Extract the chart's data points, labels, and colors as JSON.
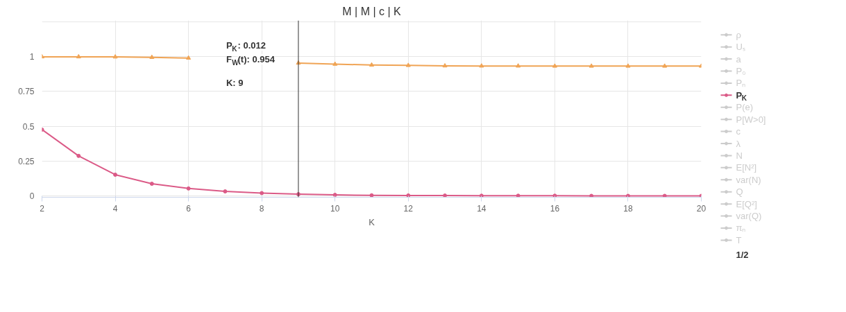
{
  "chart_data": {
    "type": "line",
    "title": "M | M | c | K",
    "xlabel": "K",
    "x": [
      2,
      3,
      4,
      5,
      6,
      7,
      8,
      9,
      10,
      11,
      12,
      13,
      14,
      15,
      16,
      17,
      18,
      19,
      20
    ],
    "xlim": [
      2,
      20
    ],
    "xticks": [
      2,
      4,
      6,
      8,
      10,
      12,
      14,
      16,
      18,
      20
    ],
    "ylim": [
      -0.01,
      1.26
    ],
    "yticks": [
      0,
      0.25,
      0.5,
      0.75,
      1,
      {
        "value": 1.25,
        "label": null
      }
    ],
    "grid": true,
    "legend": "right",
    "marker": "circle",
    "line_style": "solid",
    "series": [
      {
        "name": "ρ",
        "color": "#cccccc",
        "values": [
          null,
          null,
          null,
          null,
          null,
          null,
          null,
          null,
          null,
          null,
          null,
          null,
          null,
          null,
          null,
          null,
          null,
          null,
          null
        ]
      },
      {
        "name": "Uₛ",
        "color": "#cccccc",
        "values": [
          null,
          null,
          null,
          null,
          null,
          null,
          null,
          null,
          null,
          null,
          null,
          null,
          null,
          null,
          null,
          null,
          null,
          null,
          null
        ]
      },
      {
        "name": "a",
        "color": "#cccccc",
        "values": [
          null,
          null,
          null,
          null,
          null,
          null,
          null,
          null,
          null,
          null,
          null,
          null,
          null,
          null,
          null,
          null,
          null,
          null,
          null
        ]
      },
      {
        "name": "P₀",
        "color": "#cccccc",
        "values": [
          null,
          null,
          null,
          null,
          null,
          null,
          null,
          null,
          null,
          null,
          null,
          null,
          null,
          null,
          null,
          null,
          null,
          null,
          null
        ]
      },
      {
        "name": "Pₙ",
        "color": "#cccccc",
        "values": [
          null,
          null,
          null,
          null,
          null,
          null,
          null,
          null,
          null,
          null,
          null,
          null,
          null,
          null,
          null,
          null,
          null,
          null,
          null
        ]
      },
      {
        "name": "P$_{K}$",
        "color": "#db5a87",
        "values": [
          0.476,
          0.287,
          0.152,
          0.087,
          0.053,
          0.032,
          0.02,
          0.012,
          0.007,
          0.004,
          0.003,
          0.002,
          0.001,
          0.001,
          0.001,
          0,
          0,
          0,
          0
        ]
      },
      {
        "name": "P(e)",
        "color": "#cccccc",
        "values": [
          null,
          null,
          null,
          null,
          null,
          null,
          null,
          null,
          null,
          null,
          null,
          null,
          null,
          null,
          null,
          null,
          null,
          null,
          null
        ]
      },
      {
        "name": "P[W>0]",
        "color": "#cccccc",
        "values": [
          null,
          null,
          null,
          null,
          null,
          null,
          null,
          null,
          null,
          null,
          null,
          null,
          null,
          null,
          null,
          null,
          null,
          null,
          null
        ]
      },
      {
        "name": "c",
        "color": "#cccccc",
        "values": [
          null,
          null,
          null,
          null,
          null,
          null,
          null,
          null,
          null,
          null,
          null,
          null,
          null,
          null,
          null,
          null,
          null,
          null,
          null
        ]
      },
      {
        "name": "λ",
        "color": "#cccccc",
        "values": [
          null,
          null,
          null,
          null,
          null,
          null,
          null,
          null,
          null,
          null,
          null,
          null,
          null,
          null,
          null,
          null,
          null,
          null,
          null
        ]
      },
      {
        "name": "N",
        "color": "#cccccc",
        "values": [
          null,
          null,
          null,
          null,
          null,
          null,
          null,
          null,
          null,
          null,
          null,
          null,
          null,
          null,
          null,
          null,
          null,
          null,
          null
        ]
      },
      {
        "name": "E[N²]",
        "color": "#cccccc",
        "values": [
          null,
          null,
          null,
          null,
          null,
          null,
          null,
          null,
          null,
          null,
          null,
          null,
          null,
          null,
          null,
          null,
          null,
          null,
          null
        ]
      },
      {
        "name": "var(N)",
        "color": "#cccccc",
        "values": [
          null,
          null,
          null,
          null,
          null,
          null,
          null,
          null,
          null,
          null,
          null,
          null,
          null,
          null,
          null,
          null,
          null,
          null,
          null
        ]
      },
      {
        "name": "Q",
        "color": "#cccccc",
        "values": [
          null,
          null,
          null,
          null,
          null,
          null,
          null,
          null,
          null,
          null,
          null,
          null,
          null,
          null,
          null,
          null,
          null,
          null,
          null
        ]
      },
      {
        "name": "E[Q²]",
        "color": "#cccccc",
        "values": [
          null,
          null,
          null,
          null,
          null,
          null,
          null,
          null,
          null,
          null,
          null,
          null,
          null,
          null,
          null,
          null,
          null,
          null,
          null
        ]
      },
      {
        "name": "var(Q)",
        "color": "#cccccc",
        "values": [
          null,
          null,
          null,
          null,
          null,
          null,
          null,
          null,
          null,
          null,
          null,
          null,
          null,
          null,
          null,
          null,
          null,
          null,
          null
        ]
      },
      {
        "name": "πₙ",
        "color": "#cccccc",
        "values": [
          null,
          null,
          null,
          null,
          null,
          null,
          null,
          null,
          null,
          null,
          null,
          null,
          null,
          null,
          null,
          null,
          null,
          null,
          null
        ]
      },
      {
        "name": "T",
        "color": "#cccccc",
        "values": [
          null,
          null,
          null,
          null,
          null,
          null,
          null,
          null,
          null,
          null,
          null,
          null,
          null,
          null,
          null,
          null,
          null,
          null,
          null
        ]
      },
      {
        "color": "#f0a455",
        "marker": "triangle",
        "values": [
          0.999,
          0.999,
          0.998,
          0.995,
          0.99,
          null,
          null,
          0.954,
          0.946,
          0.94,
          0.937,
          0.934,
          0.933,
          0.933,
          0.932,
          0.932,
          0.932,
          0.932,
          0.932
        ]
      }
    ],
    "ref_lines": [
      {
        "axis": "x",
        "value": 9,
        "color": "#333333"
      }
    ],
    "annotations": [
      "P$_{K}$: 0.012",
      "F$_{W}$(t): 0.954",
      "K: 9",
      "1/2"
    ]
  }
}
